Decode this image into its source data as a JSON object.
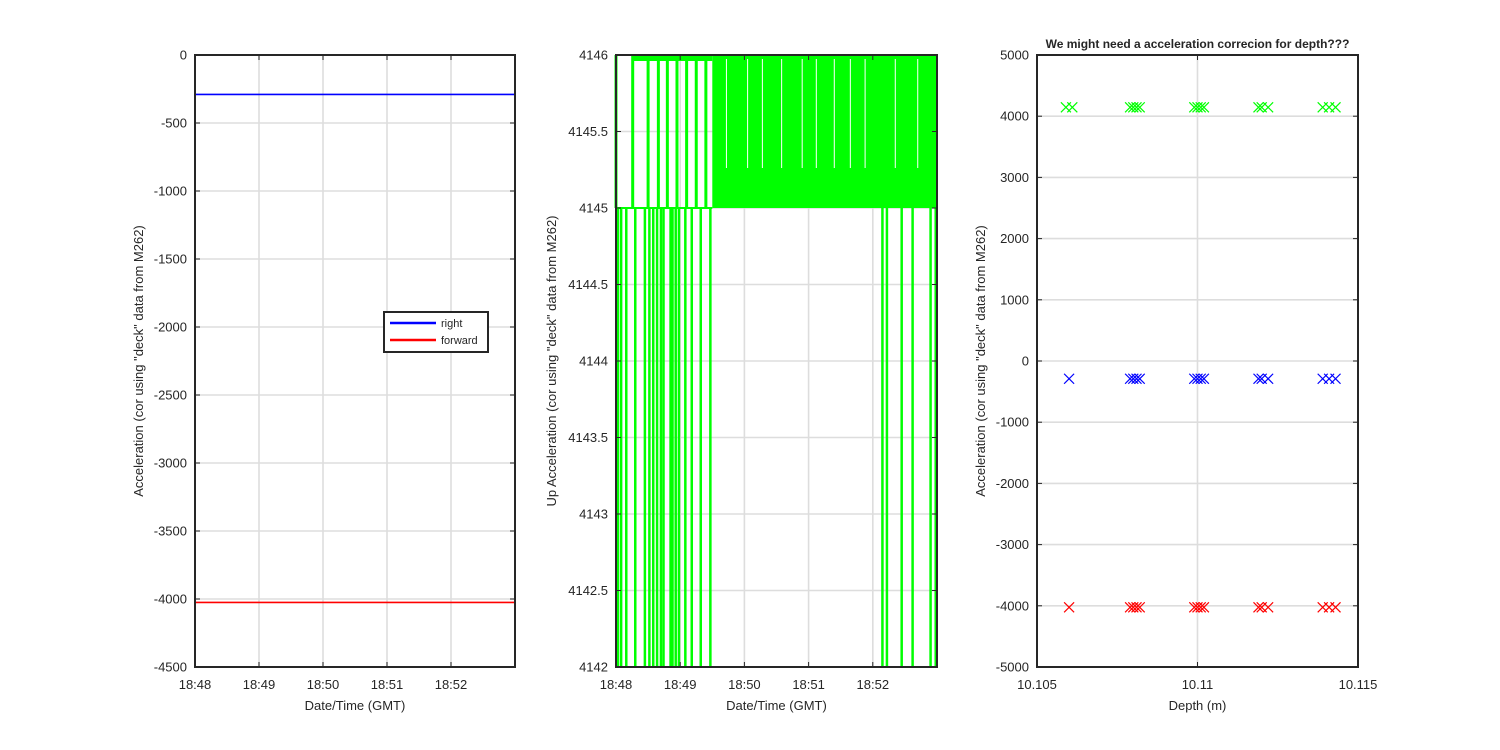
{
  "chart_data": [
    {
      "type": "line",
      "title": "",
      "xlabel": "Date/Time (GMT)",
      "ylabel": "Acceleration (cor using \"deck\" data from M262)",
      "xlim": [
        0,
        5
      ],
      "ylim": [
        -4500,
        0
      ],
      "x_ticks": [
        0,
        1,
        2,
        3,
        4
      ],
      "x_tick_labels": [
        "18:48",
        "18:49",
        "18:50",
        "18:51",
        "18:52"
      ],
      "y_ticks": [
        0,
        -500,
        -1000,
        -1500,
        -2000,
        -2500,
        -3000,
        -3500,
        -4000,
        -4500
      ],
      "y_tick_labels": [
        "0",
        "-500",
        "-1000",
        "-1500",
        "-2000",
        "-2500",
        "-3000",
        "-3500",
        "-4000",
        "-4500"
      ],
      "grid": true,
      "legend_position": "center-right",
      "series": [
        {
          "name": "right",
          "color": "#0000ff",
          "x": [
            0,
            5
          ],
          "values": [
            -290,
            -290
          ]
        },
        {
          "name": "forward",
          "color": "#ff0000",
          "x": [
            0,
            5
          ],
          "values": [
            -4025,
            -4025
          ]
        }
      ]
    },
    {
      "type": "line",
      "title": "",
      "xlabel": "Date/Time (GMT)",
      "ylabel": "Up Acceleration (cor using \"deck\" data from M262)",
      "xlim": [
        0,
        5
      ],
      "ylim": [
        4142,
        4146
      ],
      "x_ticks": [
        0,
        1,
        2,
        3,
        4
      ],
      "x_tick_labels": [
        "18:48",
        "18:49",
        "18:50",
        "18:51",
        "18:52"
      ],
      "y_ticks": [
        4146,
        4145.5,
        4145,
        4144.5,
        4144,
        4143.5,
        4143,
        4142.5,
        4142
      ],
      "y_tick_labels": [
        "4146",
        "4145.5",
        "4145",
        "4144.5",
        "4144",
        "4143.5",
        "4143",
        "4142.5",
        "4142"
      ],
      "grid": true,
      "series": [
        {
          "name": "up",
          "color": "#00ff00",
          "values_low": 4145,
          "values_high": 4146,
          "dropouts_to": 4142,
          "dropout_x": [
            0.03,
            0.08,
            0.16,
            0.3,
            0.45,
            0.52,
            0.58,
            0.64,
            0.7,
            0.74,
            0.85,
            0.88,
            0.93,
            0.98,
            1.08,
            1.18,
            1.32,
            1.47,
            4.15,
            4.22,
            4.45,
            4.62,
            4.9,
            4.98
          ]
        }
      ]
    },
    {
      "type": "scatter",
      "title": "We might need a acceleration correcion for depth???",
      "xlabel": "Depth (m)",
      "ylabel": "Acceleration (cor using \"deck\" data from M262)",
      "xlim": [
        10.105,
        10.115
      ],
      "ylim": [
        -5000,
        5000
      ],
      "x_ticks": [
        10.105,
        10.11,
        10.115
      ],
      "x_tick_labels": [
        "10.105",
        "10.11",
        "10.115"
      ],
      "y_ticks": [
        5000,
        4000,
        3000,
        2000,
        1000,
        0,
        -1000,
        -2000,
        -3000,
        -4000,
        -5000
      ],
      "y_tick_labels": [
        "5000",
        "4000",
        "3000",
        "2000",
        "1000",
        "0",
        "-1000",
        "-2000",
        "-3000",
        "-4000",
        "-5000"
      ],
      "grid": true,
      "marker": "x",
      "series": [
        {
          "name": "up",
          "color": "#00ff00",
          "x": [
            10.1059,
            10.1061,
            10.1079,
            10.108,
            10.1081,
            10.1082,
            10.1099,
            10.11,
            10.1101,
            10.1102,
            10.1119,
            10.112,
            10.1122,
            10.1139,
            10.1141,
            10.1143
          ],
          "values": [
            4145,
            4145,
            4145,
            4145,
            4145,
            4145,
            4145,
            4145,
            4145,
            4145,
            4145,
            4145,
            4145,
            4145,
            4145,
            4145
          ]
        },
        {
          "name": "right",
          "color": "#0000ff",
          "x": [
            10.106,
            10.1079,
            10.108,
            10.1081,
            10.1082,
            10.1099,
            10.11,
            10.1101,
            10.1102,
            10.1119,
            10.112,
            10.1122,
            10.1139,
            10.1141,
            10.1143
          ],
          "values": [
            -290,
            -290,
            -290,
            -290,
            -290,
            -290,
            -290,
            -290,
            -290,
            -290,
            -290,
            -290,
            -290,
            -290,
            -290
          ]
        },
        {
          "name": "forward",
          "color": "#ff0000",
          "x": [
            10.106,
            10.1079,
            10.108,
            10.1081,
            10.1082,
            10.1099,
            10.11,
            10.1101,
            10.1102,
            10.1119,
            10.112,
            10.1122,
            10.1139,
            10.1141,
            10.1143
          ],
          "values": [
            -4025,
            -4025,
            -4025,
            -4025,
            -4025,
            -4025,
            -4025,
            -4025,
            -4025,
            -4025,
            -4025,
            -4025,
            -4025,
            -4025,
            -4025
          ]
        }
      ]
    }
  ]
}
